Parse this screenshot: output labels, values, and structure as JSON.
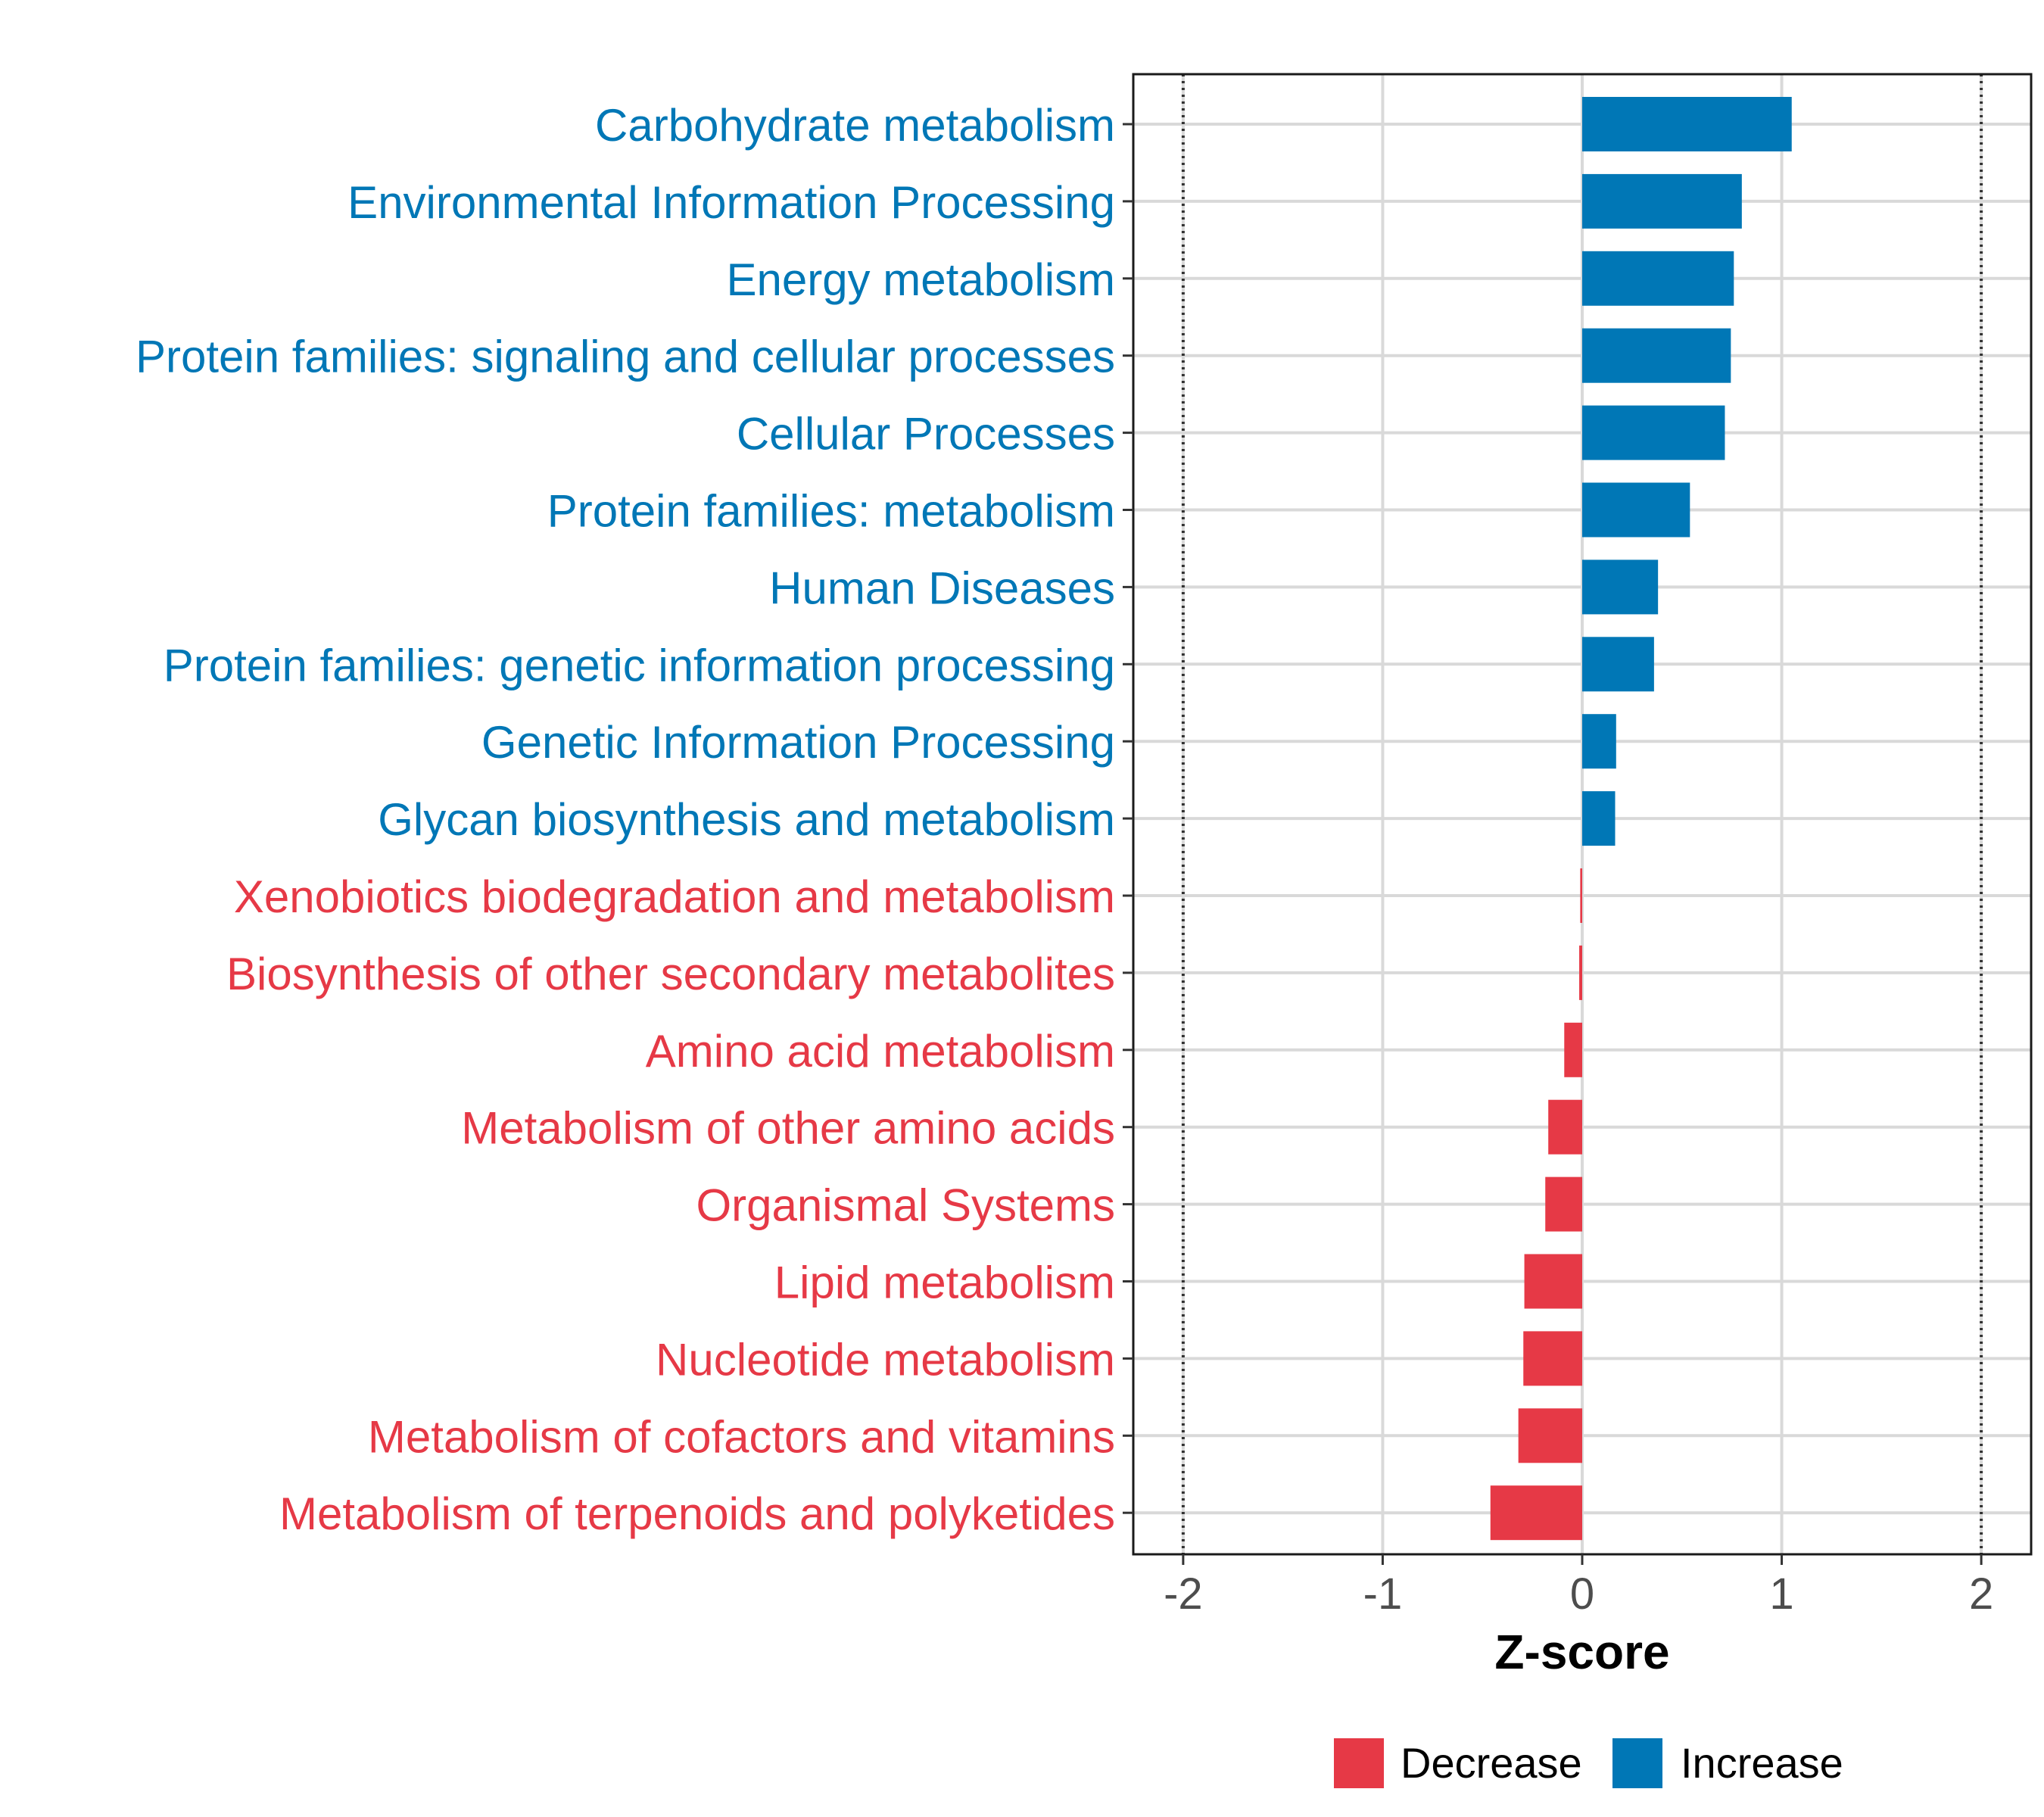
{
  "chart_data": {
    "type": "bar",
    "orientation": "horizontal",
    "categories": [
      "Carbohydrate metabolism",
      "Environmental Information Processing",
      "Energy metabolism",
      "Protein families: signaling and cellular processes",
      "Cellular Processes",
      "Protein families: metabolism",
      "Human Diseases",
      "Protein families: genetic information processing",
      "Genetic Information Processing",
      "Glycan biosynthesis and metabolism",
      "Xenobiotics biodegradation and metabolism",
      "Biosynthesis of other secondary metabolites",
      "Amino acid metabolism",
      "Metabolism of other amino acids",
      "Organismal Systems",
      "Lipid metabolism",
      "Nucleotide metabolism",
      "Metabolism of cofactors and vitamins",
      "Metabolism of terpenoids and polyketides"
    ],
    "values": [
      1.05,
      0.8,
      0.76,
      0.745,
      0.715,
      0.54,
      0.38,
      0.36,
      0.17,
      0.165,
      -0.01,
      -0.015,
      -0.09,
      -0.17,
      -0.185,
      -0.29,
      -0.295,
      -0.32,
      -0.46
    ],
    "xlabel": "Z-score",
    "ylabel": "",
    "xlim": [
      -2.25,
      2.25
    ],
    "xticks": [
      -2,
      -1,
      0,
      1,
      2
    ],
    "xtick_labels": [
      "-2",
      "-1",
      "0",
      "1",
      "2"
    ],
    "reference_lines": [
      -2,
      2
    ],
    "grid": true,
    "legend": {
      "position": "bottom",
      "entries": [
        {
          "label": "Decrease",
          "color": "#E63946"
        },
        {
          "label": "Increase",
          "color": "#0077B6"
        }
      ]
    }
  },
  "colors": {
    "increase": "#0077B6",
    "decrease": "#E63946",
    "grid": "#d9d9d9",
    "axis_text": "#4d4d4d"
  }
}
